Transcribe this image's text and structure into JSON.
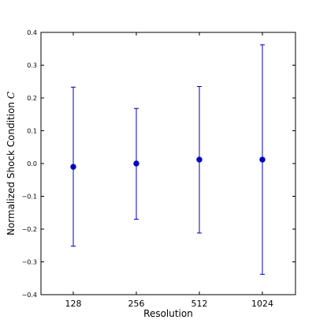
{
  "chart_data": {
    "type": "scatter",
    "title": "",
    "xlabel": "Resolution",
    "ylabel": "Normalized Shock Condition C",
    "ylabel_text": "Normalized Shock Condition ",
    "ylabel_symbol": "C",
    "categories": [
      "128",
      "256",
      "512",
      "1024"
    ],
    "y": [
      -0.01,
      0.0,
      0.012,
      0.012
    ],
    "yerr_low": [
      -0.252,
      -0.17,
      -0.212,
      -0.338
    ],
    "yerr_high": [
      0.233,
      0.168,
      0.235,
      0.362
    ],
    "ylim": [
      -0.4,
      0.4
    ],
    "yticks": [
      "0.4",
      "0.3",
      "0.2",
      "0.1",
      "0.0",
      "−0.1",
      "−0.2",
      "−0.3",
      "−0.4"
    ],
    "ytick_values": [
      0.4,
      0.3,
      0.2,
      0.1,
      0.0,
      -0.1,
      -0.2,
      -0.3,
      -0.4
    ],
    "grid": false,
    "legend": "none",
    "series_color": "#0000bf",
    "marker_color": "#0000bf"
  }
}
